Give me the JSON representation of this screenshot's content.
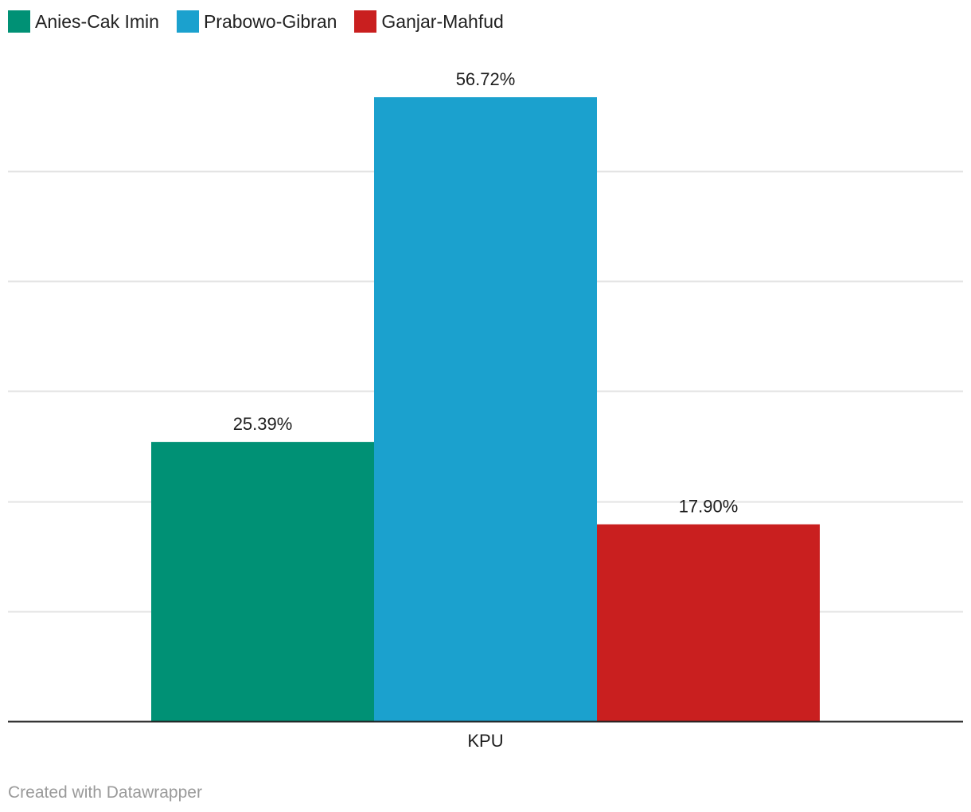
{
  "chart_data": {
    "type": "bar",
    "categories": [
      "KPU"
    ],
    "series": [
      {
        "name": "Anies-Cak Imin",
        "values": [
          25.39
        ],
        "label": "25.39%",
        "color": "#009175"
      },
      {
        "name": "Prabowo-Gibran",
        "values": [
          56.72
        ],
        "label": "56.72%",
        "color": "#1ba1ce"
      },
      {
        "name": "Ganjar-Mahfud",
        "values": [
          17.9
        ],
        "label": "17.90%",
        "color": "#c91f1f"
      }
    ],
    "ylim": [
      0,
      60
    ],
    "gridlines": [
      10,
      20,
      30,
      40,
      50
    ],
    "grid": true,
    "legend_position": "top-left",
    "title": "",
    "xlabel": "",
    "ylabel": ""
  },
  "footer": {
    "credit": "Created with Datawrapper"
  }
}
